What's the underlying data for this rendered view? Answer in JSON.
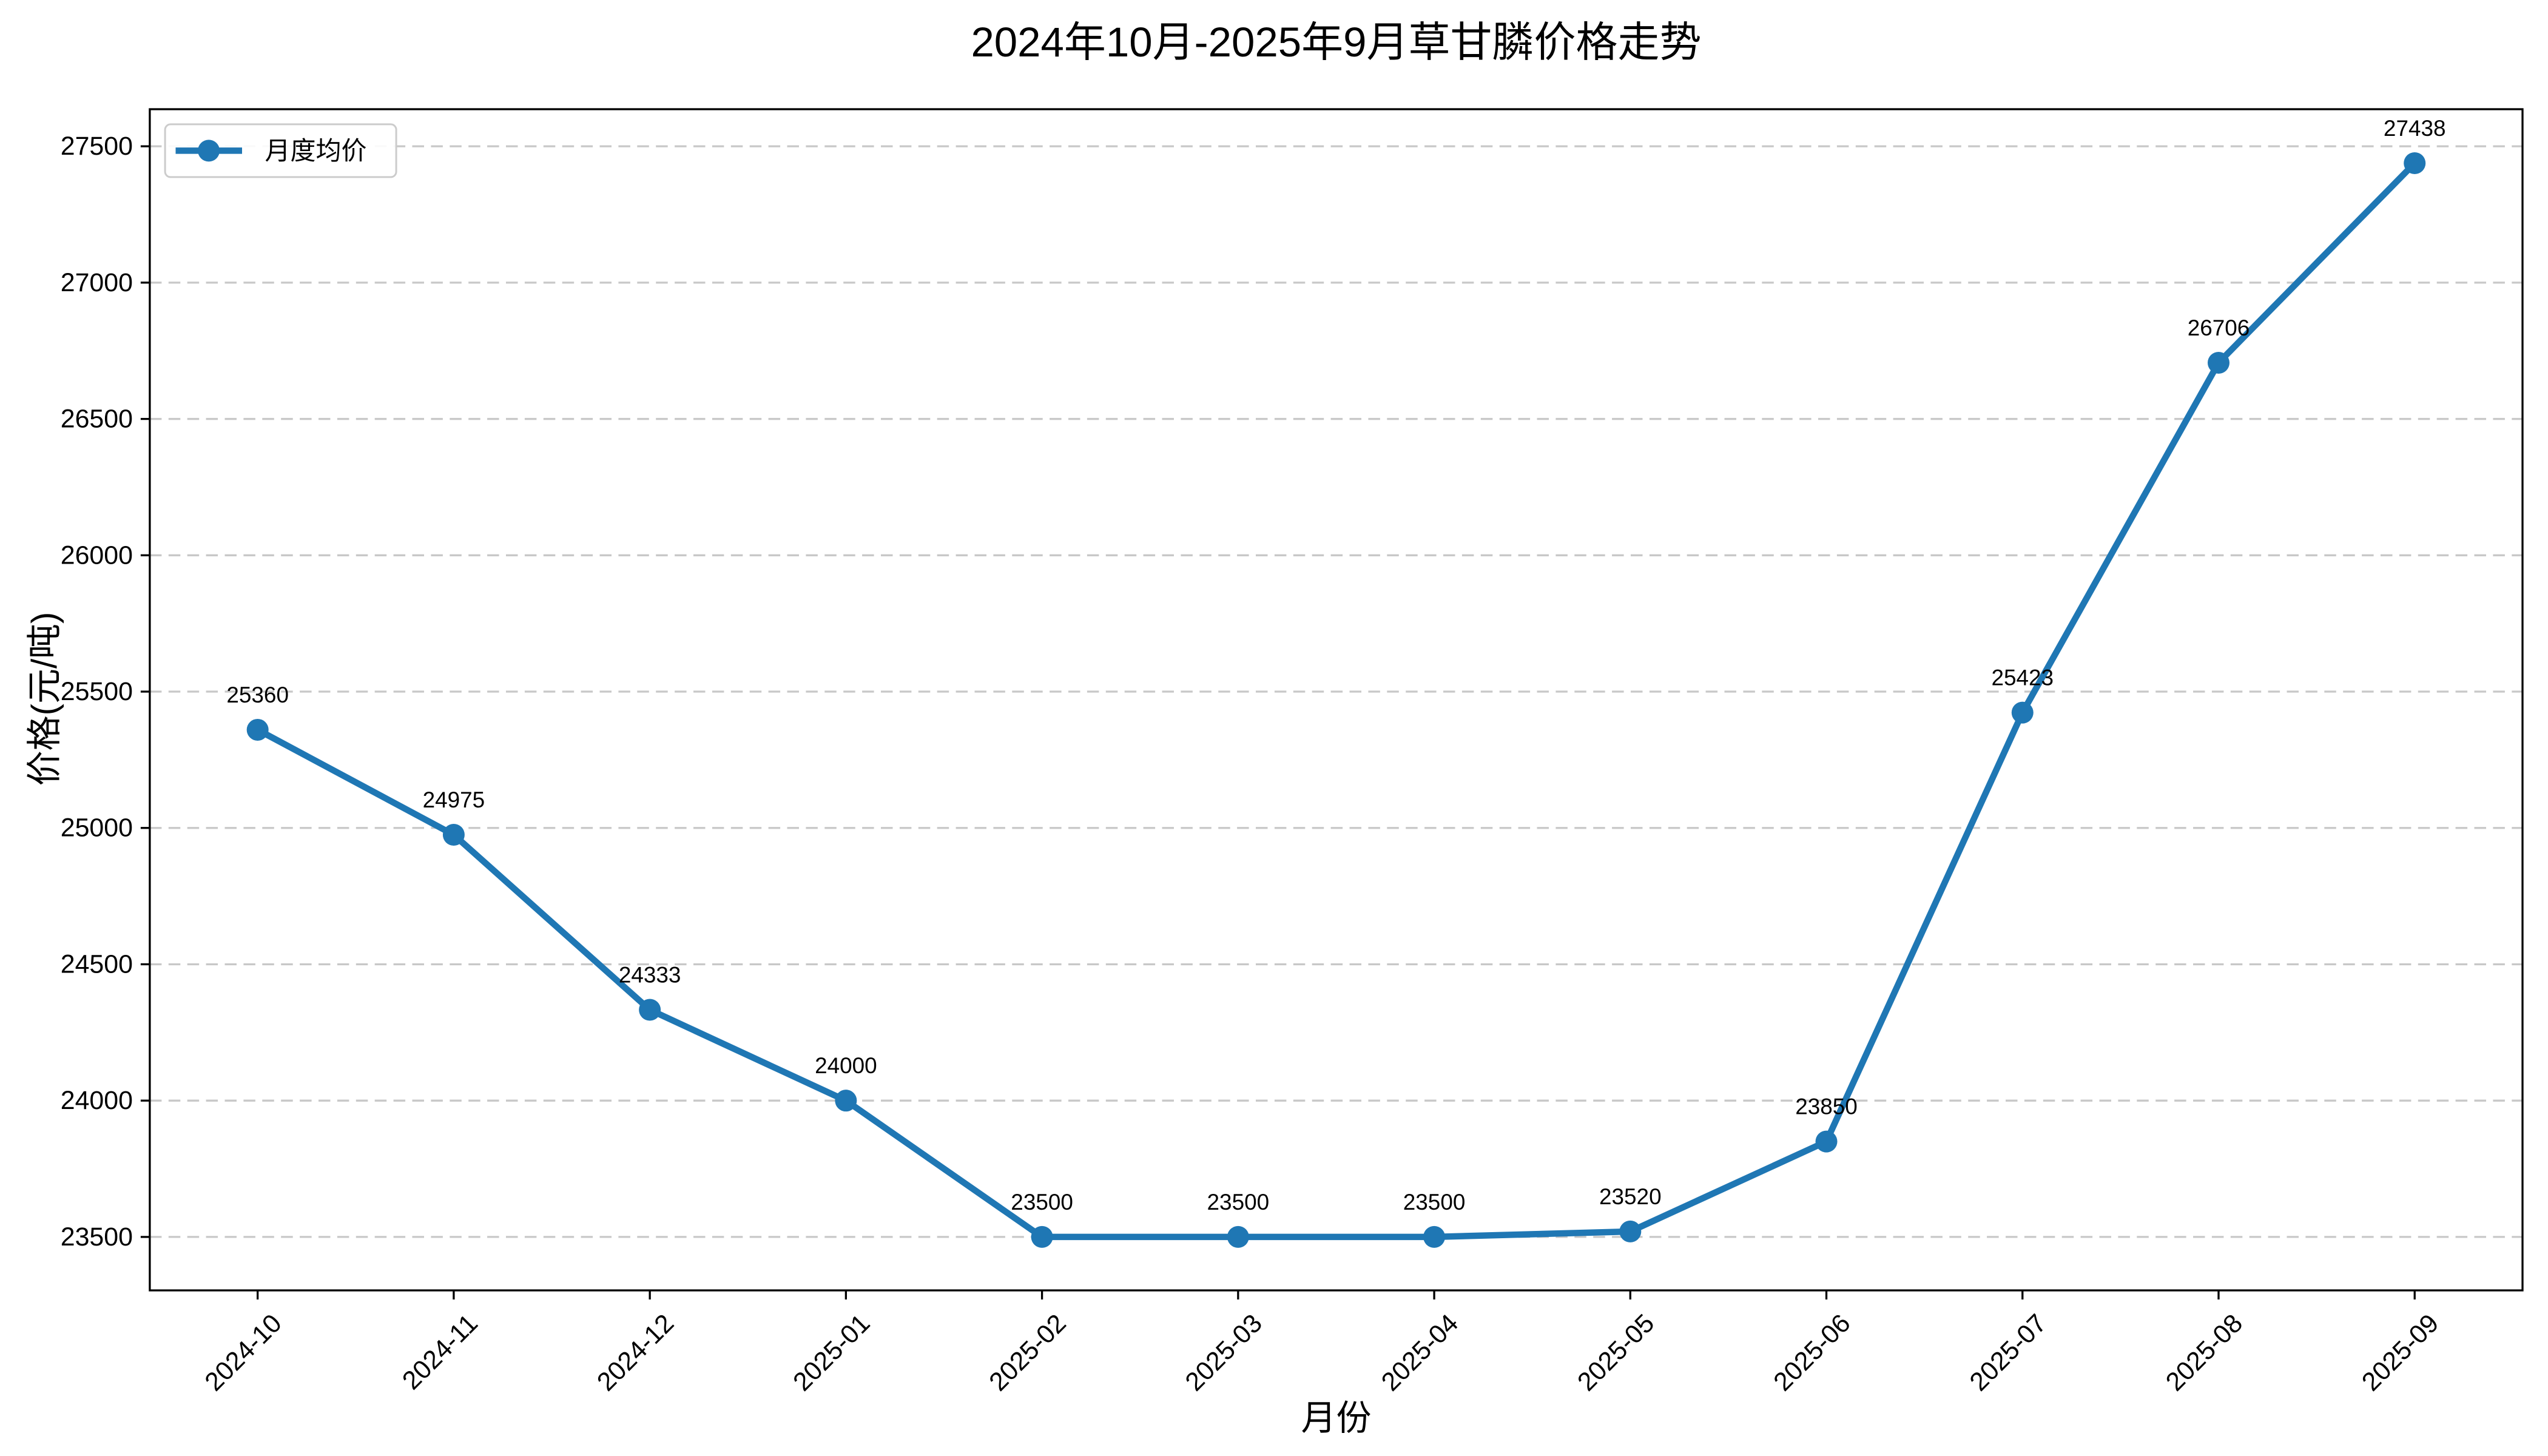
{
  "figure": {
    "background": "#ffffff"
  },
  "chart_data": {
    "type": "line",
    "title": "2024年10月-2025年9月草甘膦价格走势",
    "xlabel": "月份",
    "ylabel": "价格(元/吨)",
    "categories": [
      "2024-10",
      "2024-11",
      "2024-12",
      "2025-01",
      "2025-02",
      "2025-03",
      "2025-04",
      "2025-05",
      "2025-06",
      "2025-07",
      "2025-08",
      "2025-09"
    ],
    "series": [
      {
        "name": "月度均价",
        "color": "#1f77b4",
        "marker": "circle",
        "values": [
          25360,
          24975,
          24333,
          24000,
          23500,
          23500,
          23500,
          23520,
          23850,
          25423,
          26706,
          27438
        ],
        "point_labels": [
          25360,
          24975,
          24333,
          24000,
          23500,
          23500,
          23500,
          23520,
          23850,
          25423,
          26706,
          27438
        ]
      }
    ],
    "legend": {
      "entries": [
        "月度均价"
      ],
      "position": "upper-left"
    },
    "yticks": [
      23500,
      24000,
      24500,
      25000,
      25500,
      26000,
      26500,
      27000,
      27500
    ],
    "ylim": [
      23304,
      27636
    ],
    "xtick_rotation": 45,
    "grid": {
      "axis": "y",
      "style": "dashed",
      "color": "#c8c8c8"
    },
    "axis_color": "#000000",
    "text_color": "#000000"
  }
}
